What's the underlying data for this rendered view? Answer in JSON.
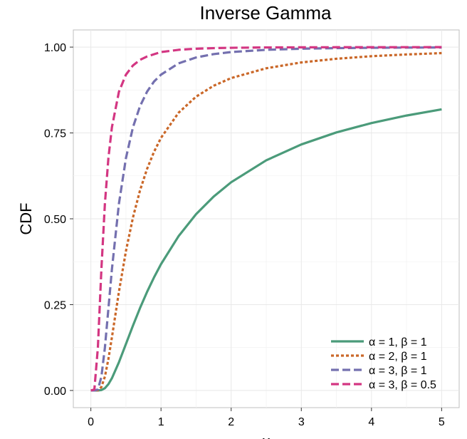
{
  "chart_data": {
    "type": "line",
    "title": "Inverse Gamma",
    "xlabel": "x",
    "ylabel": "CDF",
    "xlim": [
      -0.25,
      5.25
    ],
    "ylim": [
      -0.05,
      1.05
    ],
    "x_ticks": [
      0,
      1,
      2,
      3,
      4,
      5
    ],
    "x_tick_labels": [
      "0",
      "1",
      "2",
      "3",
      "4",
      "5"
    ],
    "y_ticks": [
      0,
      0.25,
      0.5,
      0.75,
      1.0
    ],
    "y_tick_labels": [
      "0.00",
      "0.25",
      "0.50",
      "0.75",
      "1.00"
    ],
    "grid": true,
    "legend_position": "bottom-right",
    "x": [
      0,
      0.05,
      0.1,
      0.15,
      0.2,
      0.25,
      0.3,
      0.4,
      0.5,
      0.6,
      0.7,
      0.8,
      0.9,
      1,
      1.25,
      1.5,
      1.75,
      2,
      2.5,
      3,
      3.5,
      4,
      4.5,
      5
    ],
    "series": [
      {
        "name": "α = 1, β = 1",
        "color": "#4b9b7a",
        "dash": "solid",
        "values": [
          0,
          0,
          0.0001,
          0.0013,
          0.0067,
          0.0183,
          0.0357,
          0.0821,
          0.1353,
          0.1889,
          0.2397,
          0.2865,
          0.3292,
          0.3679,
          0.4493,
          0.5134,
          0.5647,
          0.6065,
          0.6703,
          0.7165,
          0.7515,
          0.7788,
          0.8007,
          0.8187
        ]
      },
      {
        "name": "α = 2, β = 1",
        "color": "#ca6728",
        "dash": "dotted",
        "values": [
          0,
          0,
          0.0005,
          0.0101,
          0.0404,
          0.0916,
          0.1546,
          0.2873,
          0.406,
          0.5037,
          0.5822,
          0.6446,
          0.6949,
          0.7358,
          0.8088,
          0.8557,
          0.8874,
          0.9098,
          0.9384,
          0.9553,
          0.9661,
          0.9735,
          0.9786,
          0.9825
        ]
      },
      {
        "name": "α = 3, β = 1",
        "color": "#7470af",
        "dash": "dashed",
        "values": [
          0,
          0,
          0.0028,
          0.0398,
          0.1247,
          0.2381,
          0.3528,
          0.5438,
          0.6767,
          0.7665,
          0.8276,
          0.8698,
          0.8997,
          0.9197,
          0.9526,
          0.9698,
          0.9796,
          0.9856,
          0.9921,
          0.9953,
          0.997,
          0.998,
          0.9986,
          0.9989
        ]
      },
      {
        "name": "α = 3, β = 0.5",
        "color": "#d33682",
        "dash": "dashed",
        "values": [
          0,
          0.0028,
          0.1247,
          0.3528,
          0.5438,
          0.6767,
          0.7665,
          0.8698,
          0.9197,
          0.9466,
          0.9627,
          0.9726,
          0.9792,
          0.9856,
          0.9921,
          0.9953,
          0.997,
          0.998,
          0.999,
          0.9994,
          0.9996,
          0.9997,
          0.9998,
          0.9999
        ]
      }
    ]
  }
}
